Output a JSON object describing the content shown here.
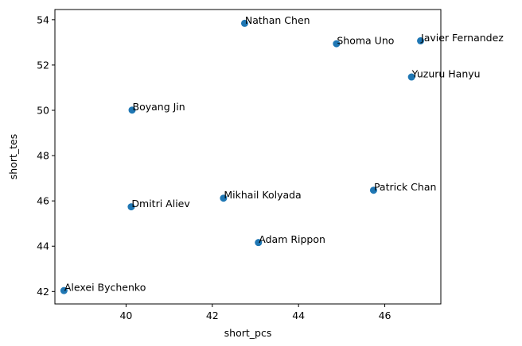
{
  "chart_data": {
    "type": "scatter",
    "xlabel": "short_pcs",
    "ylabel": "short_tes",
    "xlim": [
      38.35,
      47.3
    ],
    "ylim": [
      41.45,
      54.45
    ],
    "xticks": [
      40,
      42,
      44,
      46
    ],
    "yticks": [
      42,
      44,
      46,
      48,
      50,
      52,
      54
    ],
    "grid": false,
    "color": "#1f77b4",
    "points": [
      {
        "label": "Nathan Chen",
        "x": 42.75,
        "y": 53.84
      },
      {
        "label": "Shoma Uno",
        "x": 44.88,
        "y": 52.94
      },
      {
        "label": "Javier Fernandez",
        "x": 46.83,
        "y": 53.07
      },
      {
        "label": "Yuzuru Hanyu",
        "x": 46.62,
        "y": 51.47
      },
      {
        "label": "Boyang Jin",
        "x": 40.14,
        "y": 50.01
      },
      {
        "label": "Patrick Chan",
        "x": 45.74,
        "y": 46.47
      },
      {
        "label": "Mikhail Kolyada",
        "x": 42.26,
        "y": 46.12
      },
      {
        "label": "Dmitri Aliev",
        "x": 40.12,
        "y": 45.74
      },
      {
        "label": "Adam Rippon",
        "x": 43.07,
        "y": 44.16
      },
      {
        "label": "Alexei Bychenko",
        "x": 38.56,
        "y": 42.04
      }
    ]
  }
}
